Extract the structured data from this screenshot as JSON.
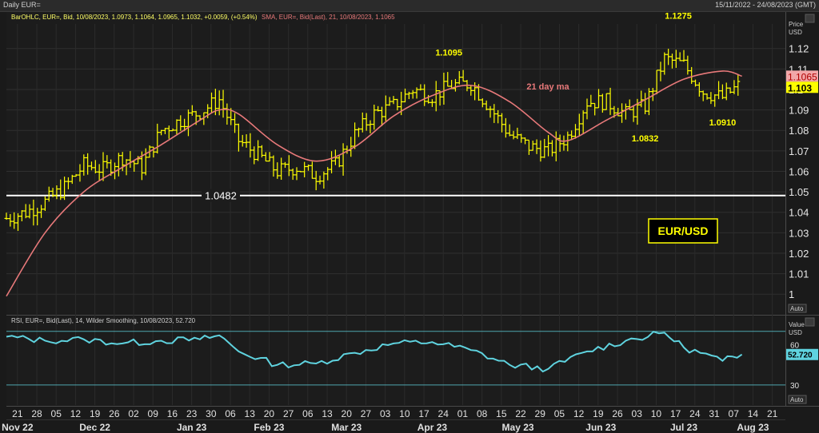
{
  "window": {
    "title": "Daily EUR=",
    "date_range": "15/11/2022 - 24/08/2023 (GMT)"
  },
  "price_panel": {
    "legend_ohlc": "BarOHLC, EUR=, Bid, 10/08/2023, 1.0973, 1.1064, 1.0965, 1.1032, +0.0059, (+0.54%)",
    "legend_sma": "SMA, EUR=, Bid(Last), 21, 10/08/2023, 1.1065",
    "axis_title": "Price",
    "axis_unit": "USD",
    "auto_label": "Auto",
    "sma_tag": "1.1065",
    "last_tag": "1.103",
    "annotation_sma": "21 day ma",
    "box_label": "EUR/USD",
    "support_label": "1.0482",
    "notes": [
      "1.1275",
      "1.1095",
      "1.0832",
      "1.0910"
    ]
  },
  "rsi_panel": {
    "legend": "RSI, EUR=, Bid(Last), 14, Wilder Smoothing, 10/08/2023, 52.720",
    "axis_title": "Value",
    "axis_unit": "USD",
    "auto_label": "Auto",
    "last_tag": "52.720",
    "ticks": [
      "60",
      "30"
    ]
  },
  "x_axis": {
    "days": [
      "21",
      "28",
      "05",
      "12",
      "19",
      "26",
      "02",
      "09",
      "16",
      "23",
      "30",
      "06",
      "13",
      "20",
      "27",
      "06",
      "13",
      "20",
      "27",
      "03",
      "10",
      "17",
      "24",
      "01",
      "08",
      "15",
      "22",
      "29",
      "05",
      "12",
      "19",
      "26",
      "03",
      "10",
      "17",
      "24",
      "31",
      "07",
      "14",
      "21"
    ],
    "months": [
      "Nov 22",
      "Dec 22",
      "Jan 23",
      "Feb 23",
      "Mar 23",
      "Apr 23",
      "May 23",
      "Jun 23",
      "Jul 23",
      "Aug 23"
    ]
  },
  "colors": {
    "bars": "#ffff00",
    "sma": "#e8797a",
    "rsi": "#5fd3df",
    "support": "#ffffff",
    "background": "#1a1a1a",
    "grid": "#333333"
  },
  "chart_data": [
    {
      "type": "bar",
      "subtype": "ohlc",
      "y_ticks": [
        "1.12",
        "1.11",
        "1.1",
        "1.09",
        "1.08",
        "1.07",
        "1.06",
        "1.05",
        "1.04",
        "1.03",
        "1.02",
        "1.01",
        "1"
      ],
      "ylim": [
        0.995,
        1.132
      ],
      "x_period": "2022-11-17 to 2023-08-24",
      "close_by_week": [
        [
          "2022-11-17",
          1.037
        ],
        [
          "2022-11-24",
          1.04
        ],
        [
          "2022-12-01",
          1.045
        ],
        [
          "2022-12-08",
          1.052
        ],
        [
          "2022-12-15",
          1.063
        ],
        [
          "2022-12-22",
          1.061
        ],
        [
          "2022-12-29",
          1.067
        ],
        [
          "2023-01-05",
          1.062
        ],
        [
          "2023-01-12",
          1.08
        ],
        [
          "2023-01-19",
          1.085
        ],
        [
          "2023-01-26",
          1.089
        ],
        [
          "2023-02-02",
          1.095
        ],
        [
          "2023-02-09",
          1.075
        ],
        [
          "2023-02-16",
          1.068
        ],
        [
          "2023-02-23",
          1.06
        ],
        [
          "2023-03-02",
          1.062
        ],
        [
          "2023-03-09",
          1.058
        ],
        [
          "2023-03-16",
          1.063
        ],
        [
          "2023-03-23",
          1.078
        ],
        [
          "2023-03-30",
          1.088
        ],
        [
          "2023-04-06",
          1.092
        ],
        [
          "2023-04-13",
          1.1
        ],
        [
          "2023-04-20",
          1.097
        ],
        [
          "2023-04-27",
          1.102
        ],
        [
          "2023-05-04",
          1.103
        ],
        [
          "2023-05-11",
          1.091
        ],
        [
          "2023-05-18",
          1.078
        ],
        [
          "2023-05-25",
          1.072
        ],
        [
          "2023-06-01",
          1.07
        ],
        [
          "2023-06-08",
          1.077
        ],
        [
          "2023-06-15",
          1.094
        ],
        [
          "2023-06-22",
          1.094
        ],
        [
          "2023-06-29",
          1.088
        ],
        [
          "2023-07-06",
          1.092
        ],
        [
          "2023-07-13",
          1.115
        ],
        [
          "2023-07-20",
          1.112
        ],
        [
          "2023-07-27",
          1.099
        ],
        [
          "2023-08-03",
          1.096
        ],
        [
          "2023-08-10",
          1.103
        ]
      ],
      "sma_21": {
        "name": "21 day ma",
        "x": [
          "2022-11-17",
          "2022-12-01",
          "2022-12-15",
          "2022-12-29",
          "2023-01-12",
          "2023-01-26",
          "2023-02-02",
          "2023-02-09",
          "2023-02-23",
          "2023-03-09",
          "2023-03-23",
          "2023-04-06",
          "2023-04-20",
          "2023-05-04",
          "2023-05-18",
          "2023-06-01",
          "2023-06-08",
          "2023-06-22",
          "2023-07-06",
          "2023-07-20",
          "2023-08-03",
          "2023-08-10"
        ],
        "y": [
          0.999,
          1.03,
          1.05,
          1.062,
          1.073,
          1.085,
          1.09,
          1.088,
          1.073,
          1.065,
          1.072,
          1.087,
          1.097,
          1.102,
          1.094,
          1.079,
          1.075,
          1.085,
          1.095,
          1.105,
          1.109,
          1.1065
        ]
      },
      "support_level": 1.0482,
      "annotations": [
        {
          "text": "1.1275",
          "x": "2023-07-18",
          "y": 1.1275
        },
        {
          "text": "1.1095",
          "x": "2023-04-26",
          "y": 1.1095
        },
        {
          "text": "1.0832",
          "x": "2023-07-06",
          "y": 1.0832
        },
        {
          "text": "1.0910",
          "x": "2023-08-03",
          "y": 1.091
        }
      ]
    },
    {
      "type": "line",
      "name": "RSI 14",
      "ylim": [
        15,
        80
      ],
      "y_ticks": [
        "60",
        "30"
      ],
      "levels": [
        70,
        30
      ],
      "x": [
        "2022-11-17",
        "2022-12-01",
        "2022-12-15",
        "2022-12-29",
        "2023-01-12",
        "2023-01-26",
        "2023-02-02",
        "2023-02-09",
        "2023-02-23",
        "2023-03-09",
        "2023-03-23",
        "2023-04-06",
        "2023-04-20",
        "2023-05-04",
        "2023-05-18",
        "2023-06-01",
        "2023-06-15",
        "2023-06-29",
        "2023-07-13",
        "2023-07-20",
        "2023-08-03",
        "2023-08-10"
      ],
      "y": [
        66,
        63,
        64,
        61,
        63,
        64,
        67,
        55,
        45,
        46,
        54,
        61,
        62,
        56,
        45,
        42,
        55,
        63,
        69,
        58,
        48,
        52.72
      ]
    }
  ]
}
